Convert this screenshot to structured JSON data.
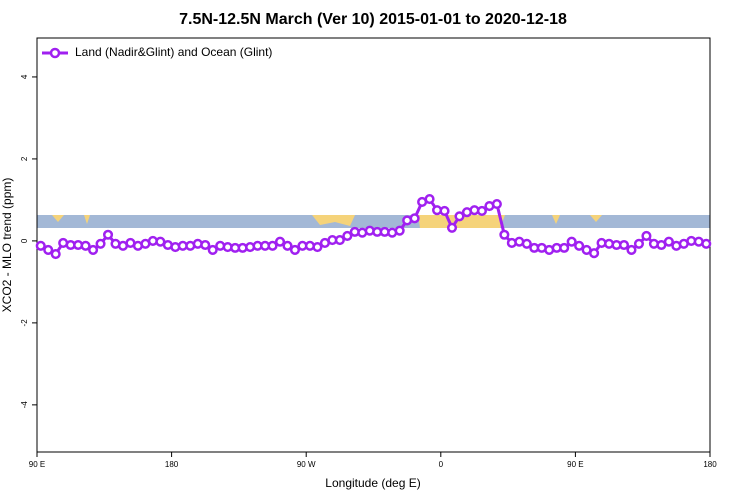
{
  "chart_data": {
    "type": "line",
    "title": "7.5N-12.5N March (Ver 10)   2015-01-01 to 2020-12-18",
    "xlabel": "Longitude (deg E)",
    "ylabel": "XCO2 - MLO trend (ppm)",
    "xlim": [
      90,
      540
    ],
    "ylim": [
      -5.15,
      4.95
    ],
    "xticks": [
      {
        "value": 90,
        "label": "90 E"
      },
      180,
      {
        "value": 270,
        "label": "90 W"
      },
      {
        "value": 360,
        "label": "0"
      },
      {
        "value": 450,
        "label": "90 E"
      },
      {
        "value": 540,
        "label": "180"
      }
    ],
    "yticks": [
      -4,
      -2,
      0,
      2,
      4
    ],
    "legend": "top-left",
    "x": [
      92.5,
      97.5,
      102.5,
      107.5,
      112.5,
      117.5,
      122.5,
      127.5,
      132.5,
      137.5,
      142.5,
      147.5,
      152.5,
      157.5,
      162.5,
      167.5,
      172.5,
      177.5,
      182.5,
      187.5,
      192.5,
      197.5,
      202.5,
      207.5,
      212.5,
      217.5,
      222.5,
      227.5,
      232.5,
      237.5,
      242.5,
      247.5,
      252.5,
      257.5,
      262.5,
      267.5,
      272.5,
      277.5,
      282.5,
      287.5,
      292.5,
      297.5,
      302.5,
      307.5,
      312.5,
      317.5,
      322.5,
      327.5,
      332.5,
      337.5,
      342.5,
      347.5,
      352.5,
      357.5,
      362.5,
      367.5,
      372.5,
      377.5,
      382.5,
      387.5,
      392.5,
      397.5,
      402.5,
      407.5,
      412.5,
      417.5,
      422.5,
      427.5,
      432.5,
      437.5,
      442.5,
      447.5,
      452.5,
      457.5,
      462.5,
      467.5,
      472.5,
      477.5,
      482.5,
      487.5,
      492.5,
      497.5,
      502.5,
      507.5,
      512.5,
      517.5,
      522.5,
      527.5,
      532.5,
      537.5
    ],
    "series": [
      {
        "name": "Land (Nadir&Glint) and Ocean (Glint)",
        "color": "#a020f0",
        "values": [
          -0.12,
          -0.22,
          -0.32,
          -0.05,
          -0.1,
          -0.1,
          -0.12,
          -0.22,
          -0.07,
          0.15,
          -0.07,
          -0.12,
          -0.05,
          -0.12,
          -0.07,
          0,
          -0.02,
          -0.1,
          -0.15,
          -0.12,
          -0.12,
          -0.07,
          -0.1,
          -0.22,
          -0.12,
          -0.15,
          -0.17,
          -0.17,
          -0.15,
          -0.12,
          -0.12,
          -0.12,
          -0.02,
          -0.12,
          -0.22,
          -0.12,
          -0.12,
          -0.15,
          -0.05,
          0.02,
          0.02,
          0.12,
          0.22,
          0.2,
          0.25,
          0.22,
          0.22,
          0.2,
          0.25,
          0.5,
          0.55,
          0.95,
          1.02,
          0.75,
          0.73,
          0.32,
          0.6,
          0.7,
          0.75,
          0.73,
          0.85,
          0.9,
          0.15,
          -0.05,
          -0.02,
          -0.07,
          -0.17,
          -0.17,
          -0.22,
          -0.17,
          -0.17,
          -0.02,
          -0.12,
          -0.22,
          -0.3,
          -0.05,
          -0.07,
          -0.1,
          -0.1,
          -0.22,
          -0.07,
          0.12,
          -0.07,
          -0.1,
          -0.02,
          -0.12,
          -0.07,
          0,
          -0.02,
          -0.07
        ]
      }
    ]
  }
}
